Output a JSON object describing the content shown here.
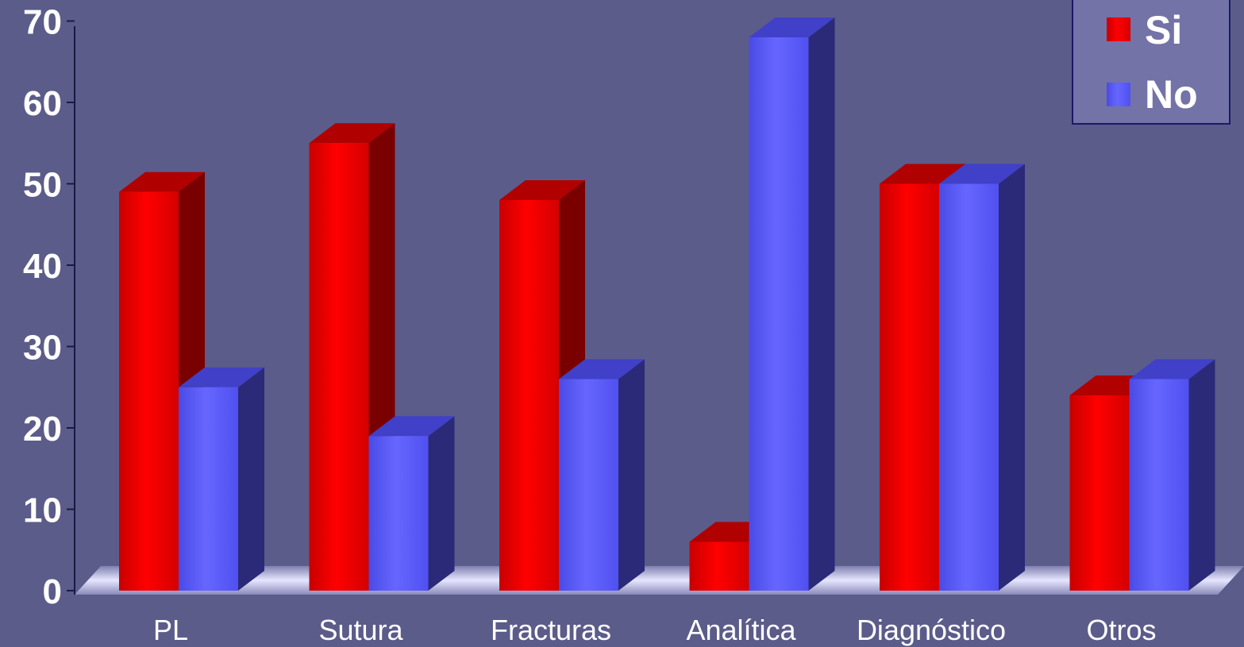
{
  "chart_data": {
    "type": "bar",
    "categories": [
      "PL",
      "Sutura",
      "Fracturas",
      "Analítica",
      "Diagnóstico",
      "Otros"
    ],
    "series": [
      {
        "name": "Si",
        "values": [
          49,
          55,
          48,
          6,
          50,
          24
        ],
        "color": "#ff0000"
      },
      {
        "name": "No",
        "values": [
          25,
          19,
          26,
          68,
          50,
          26
        ],
        "color": "#5f5fff"
      }
    ],
    "yticks": [
      "0",
      "10",
      "20",
      "30",
      "40",
      "50",
      "60",
      "70"
    ],
    "ylim": [
      0,
      70
    ],
    "grid": false,
    "legend_position": "top-right",
    "style": "3d-bars"
  }
}
